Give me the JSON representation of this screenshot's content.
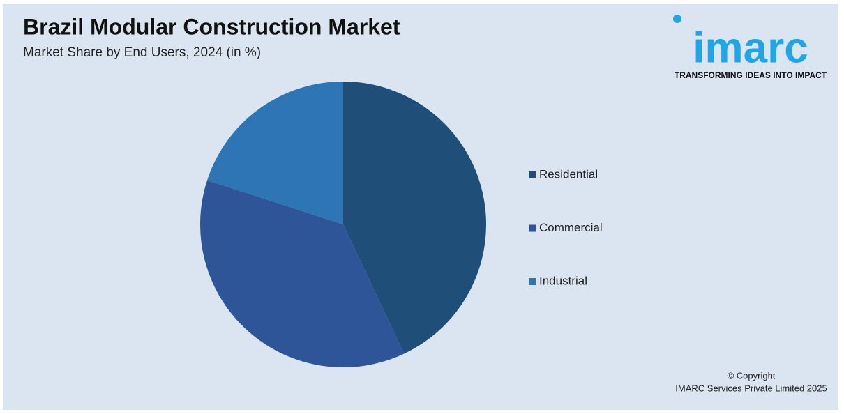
{
  "chart_data": {
    "type": "pie",
    "title": "Brazil Modular Construction Market",
    "subtitle": "Market Share by End Users, 2024 (in %)",
    "categories": [
      "Residential",
      "Commercial",
      "Industrial"
    ],
    "values": [
      43,
      37,
      20
    ],
    "colors": [
      "#1f4e79",
      "#2e5597",
      "#2e75b6"
    ]
  },
  "logo": {
    "name": "imarc",
    "tagline": "TRANSFORMING IDEAS INTO IMPACT"
  },
  "footer": {
    "line1": "© Copyright",
    "line2": "IMARC Services Private Limited 2025"
  }
}
